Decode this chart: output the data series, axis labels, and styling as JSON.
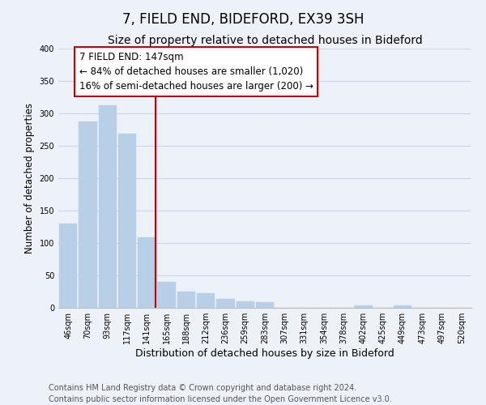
{
  "title": "7, FIELD END, BIDEFORD, EX39 3SH",
  "subtitle": "Size of property relative to detached houses in Bideford",
  "xlabel": "Distribution of detached houses by size in Bideford",
  "ylabel": "Number of detached properties",
  "bin_labels": [
    "46sqm",
    "70sqm",
    "93sqm",
    "117sqm",
    "141sqm",
    "165sqm",
    "188sqm",
    "212sqm",
    "236sqm",
    "259sqm",
    "283sqm",
    "307sqm",
    "331sqm",
    "354sqm",
    "378sqm",
    "402sqm",
    "425sqm",
    "449sqm",
    "473sqm",
    "497sqm",
    "520sqm"
  ],
  "bar_values": [
    130,
    287,
    313,
    269,
    109,
    40,
    25,
    22,
    14,
    10,
    9,
    0,
    0,
    0,
    0,
    4,
    0,
    4,
    0,
    0,
    0
  ],
  "bar_color": "#b8cfe8",
  "vline_color": "#cc0000",
  "vline_bar_index": 4,
  "annotation_text": "7 FIELD END: 147sqm\n← 84% of detached houses are smaller (1,020)\n16% of semi-detached houses are larger (200) →",
  "annotation_box_facecolor": "#ffffff",
  "annotation_box_edgecolor": "#cc0000",
  "ylim": [
    0,
    400
  ],
  "yticks": [
    0,
    50,
    100,
    150,
    200,
    250,
    300,
    350,
    400
  ],
  "grid_color": "#ccd8ea",
  "bg_color": "#edf1f8",
  "title_fontsize": 12,
  "subtitle_fontsize": 10,
  "annotation_fontsize": 8.5,
  "ylabel_fontsize": 8.5,
  "xlabel_fontsize": 9,
  "tick_fontsize": 7,
  "footer_fontsize": 7,
  "footer_line1": "Contains HM Land Registry data © Crown copyright and database right 2024.",
  "footer_line2": "Contains public sector information licensed under the Open Government Licence v3.0."
}
